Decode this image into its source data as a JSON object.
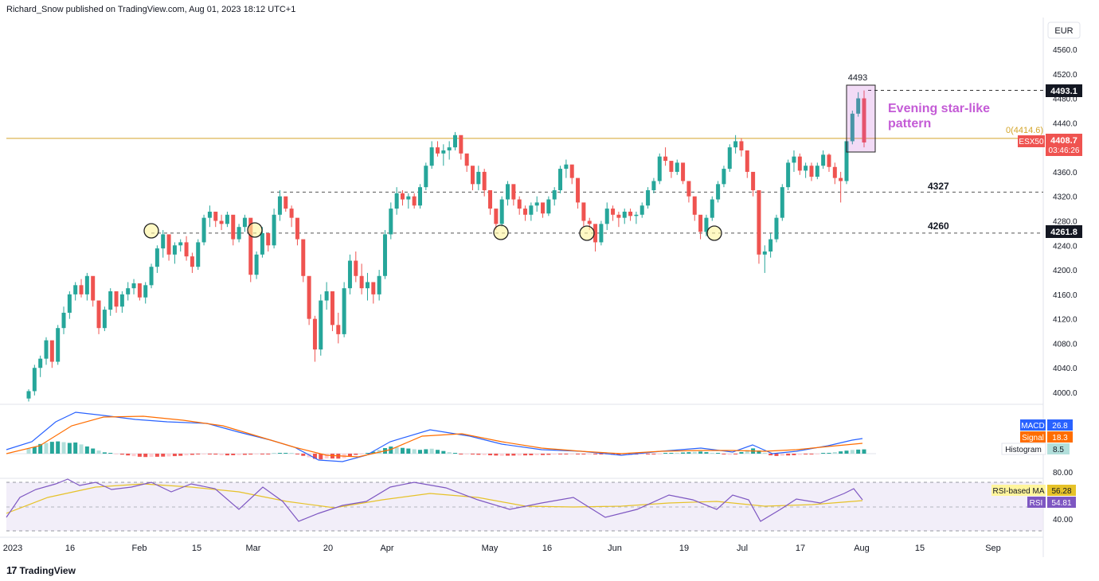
{
  "header": {
    "publisher_line": "Richard_Snow published on TradingView.com, Aug 01, 2023 18:12 UTC+1"
  },
  "footer": {
    "brand": "TradingView",
    "brand_icon": "tradingview-logo-icon"
  },
  "currency_label": "EUR",
  "colors": {
    "up": "#26a69a",
    "down": "#ef5350",
    "resistance": "#d4a52a",
    "annotation": "#c45bd6",
    "macd": "#2962ff",
    "signal": "#ff6d00",
    "rsi": "#7e57c2",
    "rsi_ma": "#e6c229"
  },
  "price_labels": {
    "box_high": "4493",
    "current_high": "4493.1",
    "fib_label": "0(4414.6)",
    "symbol": "ESX50",
    "last_price": "4408.7",
    "countdown": "03:46:26",
    "level_4327": "4327",
    "level_4260": "4260",
    "support_value": "4261.8"
  },
  "annotation": {
    "line1": "Evening star-like",
    "line2": "pattern"
  },
  "macd_panel": {
    "macd_label": "MACD",
    "macd_value": "26.8",
    "signal_label": "Signal",
    "signal_value": "18.3",
    "histogram_label": "Histogram",
    "histogram_value": "8.5"
  },
  "rsi_panel": {
    "ma_label": "RSI-based MA",
    "ma_value": "56.28",
    "rsi_label": "RSI",
    "rsi_value": "54.81",
    "ticks": [
      "80.00",
      "40.00"
    ]
  },
  "chart_data": {
    "type": "candlestick",
    "symbol": "ESX50",
    "currency": "EUR",
    "y_axis_ticks": [
      4000,
      4040,
      4080,
      4120,
      4160,
      4200,
      4240,
      4280,
      4320,
      4360,
      4400,
      4440,
      4480,
      4520,
      4560
    ],
    "ylim": [
      3990,
      4580
    ],
    "x_axis_labels": [
      "2023",
      "16",
      "Feb",
      "15",
      "Mar",
      "20",
      "Apr",
      "May",
      "16",
      "Jun",
      "19",
      "Jul",
      "17",
      "Aug",
      "15",
      "Sep"
    ],
    "horizontal_levels": [
      {
        "value": 4414.6,
        "label": "0(4414.6)",
        "style": "solid"
      },
      {
        "value": 4327,
        "label": "4327",
        "style": "dashed"
      },
      {
        "value": 4260,
        "label": "4260",
        "style": "dashed"
      },
      {
        "value": 4493.1,
        "label": "4493",
        "style": "dashed"
      }
    ],
    "pattern_label": "Evening star-like pattern",
    "candles_ohlc": [
      [
        3990,
        4005,
        3985,
        4002
      ],
      [
        4002,
        4045,
        3995,
        4040
      ],
      [
        4040,
        4060,
        4025,
        4055
      ],
      [
        4055,
        4090,
        4045,
        4085
      ],
      [
        4085,
        4080,
        4040,
        4050
      ],
      [
        4050,
        4110,
        4045,
        4105
      ],
      [
        4105,
        4140,
        4095,
        4130
      ],
      [
        4130,
        4165,
        4120,
        4160
      ],
      [
        4160,
        4180,
        4150,
        4175
      ],
      [
        4175,
        4185,
        4155,
        4160
      ],
      [
        4160,
        4195,
        4150,
        4190
      ],
      [
        4190,
        4180,
        4140,
        4150
      ],
      [
        4150,
        4120,
        4095,
        4105
      ],
      [
        4105,
        4140,
        4100,
        4135
      ],
      [
        4135,
        4170,
        4125,
        4165
      ],
      [
        4165,
        4160,
        4130,
        4140
      ],
      [
        4140,
        4165,
        4130,
        4160
      ],
      [
        4160,
        4180,
        4150,
        4170
      ],
      [
        4170,
        4185,
        4160,
        4178
      ],
      [
        4178,
        4175,
        4150,
        4155
      ],
      [
        4155,
        4180,
        4145,
        4175
      ],
      [
        4175,
        4210,
        4170,
        4205
      ],
      [
        4205,
        4240,
        4195,
        4235
      ],
      [
        4235,
        4265,
        4220,
        4258
      ],
      [
        4258,
        4250,
        4215,
        4225
      ],
      [
        4225,
        4245,
        4210,
        4240
      ],
      [
        4240,
        4250,
        4230,
        4245
      ],
      [
        4245,
        4255,
        4215,
        4222
      ],
      [
        4222,
        4228,
        4195,
        4205
      ],
      [
        4205,
        4250,
        4200,
        4245
      ],
      [
        4245,
        4290,
        4240,
        4285
      ],
      [
        4285,
        4305,
        4270,
        4295
      ],
      [
        4295,
        4290,
        4270,
        4280
      ],
      [
        4280,
        4290,
        4265,
        4275
      ],
      [
        4275,
        4295,
        4270,
        4290
      ],
      [
        4290,
        4285,
        4240,
        4250
      ],
      [
        4250,
        4275,
        4245,
        4270
      ],
      [
        4270,
        4290,
        4262,
        4285
      ],
      [
        4285,
        4275,
        4180,
        4192
      ],
      [
        4192,
        4230,
        4185,
        4225
      ],
      [
        4225,
        4270,
        4220,
        4260
      ],
      [
        4260,
        4255,
        4230,
        4240
      ],
      [
        4240,
        4300,
        4235,
        4290
      ],
      [
        4290,
        4330,
        4280,
        4320
      ],
      [
        4320,
        4315,
        4295,
        4300
      ],
      [
        4300,
        4305,
        4270,
        4285
      ],
      [
        4285,
        4275,
        4240,
        4250
      ],
      [
        4250,
        4240,
        4180,
        4190
      ],
      [
        4190,
        4185,
        4110,
        4120
      ],
      [
        4120,
        4125,
        4050,
        4070
      ],
      [
        4070,
        4160,
        4060,
        4150
      ],
      [
        4150,
        4180,
        4135,
        4165
      ],
      [
        4165,
        4155,
        4100,
        4110
      ],
      [
        4110,
        4130,
        4080,
        4095
      ],
      [
        4095,
        4180,
        4090,
        4170
      ],
      [
        4170,
        4225,
        4160,
        4215
      ],
      [
        4215,
        4230,
        4180,
        4190
      ],
      [
        4190,
        4210,
        4160,
        4170
      ],
      [
        4170,
        4195,
        4150,
        4180
      ],
      [
        4180,
        4175,
        4145,
        4160
      ],
      [
        4160,
        4200,
        4150,
        4190
      ],
      [
        4190,
        4265,
        4185,
        4258
      ],
      [
        4258,
        4310,
        4250,
        4300
      ],
      [
        4300,
        4335,
        4290,
        4325
      ],
      [
        4325,
        4330,
        4305,
        4315
      ],
      [
        4315,
        4325,
        4300,
        4320
      ],
      [
        4320,
        4325,
        4300,
        4305
      ],
      [
        4305,
        4340,
        4300,
        4335
      ],
      [
        4335,
        4375,
        4330,
        4370
      ],
      [
        4370,
        4410,
        4365,
        4400
      ],
      [
        4400,
        4410,
        4385,
        4390
      ],
      [
        4390,
        4405,
        4370,
        4395
      ],
      [
        4395,
        4410,
        4380,
        4400
      ],
      [
        4400,
        4425,
        4395,
        4420
      ],
      [
        4420,
        4405,
        4380,
        4390
      ],
      [
        4390,
        4385,
        4360,
        4370
      ],
      [
        4370,
        4360,
        4330,
        4340
      ],
      [
        4340,
        4370,
        4330,
        4360
      ],
      [
        4360,
        4365,
        4320,
        4330
      ],
      [
        4330,
        4320,
        4290,
        4300
      ],
      [
        4300,
        4290,
        4265,
        4275
      ],
      [
        4275,
        4320,
        4270,
        4315
      ],
      [
        4315,
        4345,
        4305,
        4340
      ],
      [
        4340,
        4335,
        4305,
        4315
      ],
      [
        4315,
        4320,
        4290,
        4300
      ],
      [
        4300,
        4305,
        4280,
        4290
      ],
      [
        4290,
        4310,
        4280,
        4305
      ],
      [
        4305,
        4320,
        4295,
        4310
      ],
      [
        4310,
        4305,
        4285,
        4292
      ],
      [
        4292,
        4320,
        4288,
        4315
      ],
      [
        4315,
        4335,
        4305,
        4330
      ],
      [
        4330,
        4370,
        4325,
        4365
      ],
      [
        4365,
        4380,
        4350,
        4372
      ],
      [
        4372,
        4370,
        4340,
        4350
      ],
      [
        4350,
        4345,
        4300,
        4310
      ],
      [
        4310,
        4300,
        4270,
        4280
      ],
      [
        4280,
        4285,
        4265,
        4275
      ],
      [
        4275,
        4260,
        4230,
        4245
      ],
      [
        4245,
        4280,
        4240,
        4275
      ],
      [
        4275,
        4310,
        4265,
        4300
      ],
      [
        4300,
        4305,
        4280,
        4290
      ],
      [
        4290,
        4295,
        4270,
        4285
      ],
      [
        4285,
        4300,
        4275,
        4295
      ],
      [
        4295,
        4300,
        4280,
        4288
      ],
      [
        4288,
        4295,
        4275,
        4290
      ],
      [
        4290,
        4310,
        4285,
        4305
      ],
      [
        4305,
        4335,
        4300,
        4330
      ],
      [
        4330,
        4350,
        4325,
        4345
      ],
      [
        4345,
        4390,
        4340,
        4385
      ],
      [
        4385,
        4400,
        4370,
        4378
      ],
      [
        4378,
        4375,
        4350,
        4360
      ],
      [
        4360,
        4380,
        4355,
        4375
      ],
      [
        4375,
        4370,
        4340,
        4345
      ],
      [
        4345,
        4340,
        4310,
        4320
      ],
      [
        4320,
        4315,
        4280,
        4290
      ],
      [
        4290,
        4280,
        4250,
        4262
      ],
      [
        4262,
        4290,
        4255,
        4285
      ],
      [
        4285,
        4320,
        4280,
        4315
      ],
      [
        4315,
        4345,
        4310,
        4340
      ],
      [
        4340,
        4370,
        4335,
        4365
      ],
      [
        4365,
        4405,
        4360,
        4400
      ],
      [
        4400,
        4420,
        4390,
        4410
      ],
      [
        4410,
        4415,
        4385,
        4395
      ],
      [
        4395,
        4390,
        4350,
        4360
      ],
      [
        4360,
        4350,
        4320,
        4330
      ],
      [
        4330,
        4320,
        4210,
        4225
      ],
      [
        4225,
        4240,
        4195,
        4230
      ],
      [
        4230,
        4260,
        4220,
        4250
      ],
      [
        4250,
        4290,
        4245,
        4285
      ],
      [
        4285,
        4340,
        4280,
        4335
      ],
      [
        4335,
        4380,
        4330,
        4375
      ],
      [
        4375,
        4395,
        4360,
        4385
      ],
      [
        4385,
        4390,
        4355,
        4362
      ],
      [
        4362,
        4375,
        4350,
        4370
      ],
      [
        4370,
        4375,
        4345,
        4352
      ],
      [
        4352,
        4375,
        4348,
        4370
      ],
      [
        4370,
        4395,
        4365,
        4388
      ],
      [
        4388,
        4390,
        4360,
        4368
      ],
      [
        4368,
        4375,
        4340,
        4350
      ],
      [
        4350,
        4360,
        4310,
        4345
      ],
      [
        4345,
        4415,
        4340,
        4410
      ],
      [
        4410,
        4460,
        4405,
        4455
      ],
      [
        4455,
        4490,
        4450,
        4480
      ],
      [
        4480,
        4493,
        4400,
        4408
      ]
    ]
  }
}
